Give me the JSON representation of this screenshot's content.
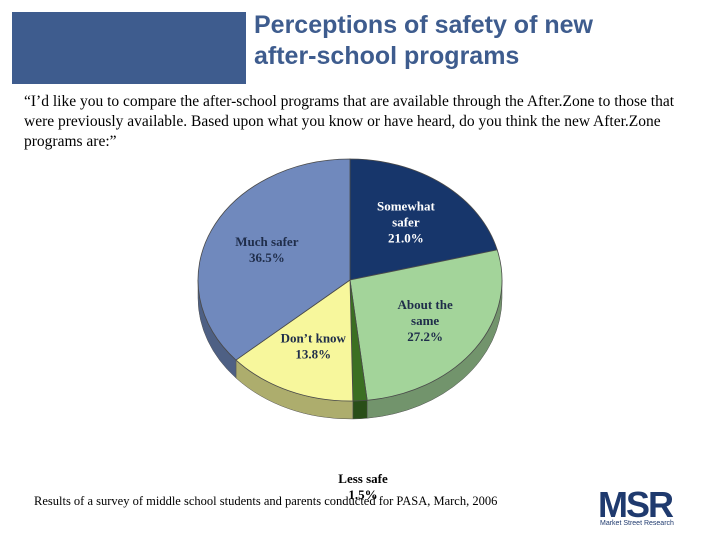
{
  "header": {
    "title_line1": "Perceptions of safety of new",
    "title_line2": "after-school programs"
  },
  "question": {
    "text": "“I’d like you to compare the after-school programs that are available through the After.Zone to those that were previously available.  Based upon what you know or have heard, do you think the new After.Zone programs are:”"
  },
  "chart_data": {
    "type": "pie",
    "title": "",
    "slices": [
      {
        "label_lines": [
          "Somewhat",
          "safer"
        ],
        "value": 21.0,
        "value_label": "21.0%",
        "color": "#17366b",
        "label_color": "#ffffff"
      },
      {
        "label_lines": [
          "About the",
          "same"
        ],
        "value": 27.2,
        "value_label": "27.2%",
        "color": "#a3d49a",
        "label_color": "#1f2d4a"
      },
      {
        "label_lines": [
          "Less safe"
        ],
        "value": 1.5,
        "value_label": "1.5%",
        "color": "#3b6f22",
        "label_color": "#000000"
      },
      {
        "label_lines": [
          "Don’t know"
        ],
        "value": 13.8,
        "value_label": "13.8%",
        "color": "#f7f79c",
        "label_color": "#1f2d4a"
      },
      {
        "label_lines": [
          "Much safer"
        ],
        "value": 36.5,
        "value_label": "36.5%",
        "color": "#7089bd",
        "label_color": "#1f2d4a"
      }
    ]
  },
  "footnote": {
    "text": "Results of a survey of middle school students and parents conducted for PASA, March, 2006"
  },
  "logo": {
    "letters": "MSR",
    "subtitle": "Market Street Research"
  }
}
